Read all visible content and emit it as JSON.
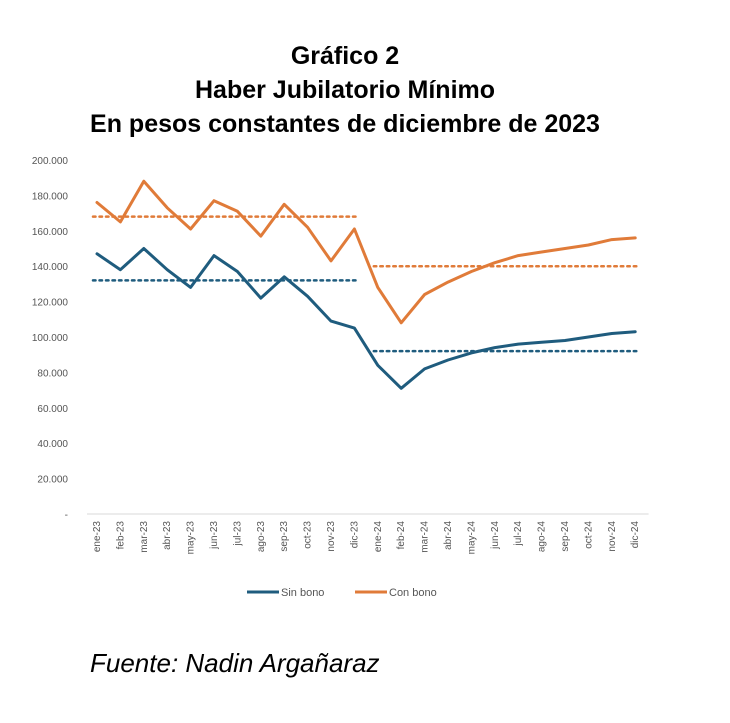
{
  "title": {
    "line1": "Gráfico 2",
    "line2": "Haber Jubilatorio Mínimo",
    "line3": "En pesos constantes de diciembre de 2023"
  },
  "source": "Fuente: Nadin Argañaraz",
  "colors": {
    "sin_bono": "#1F5C7E",
    "con_bono": "#E07B39",
    "axis_text": "#555555"
  },
  "chart_data": {
    "type": "line",
    "categories": [
      "ene-23",
      "feb-23",
      "mar-23",
      "abr-23",
      "may-23",
      "jun-23",
      "jul-23",
      "ago-23",
      "sep-23",
      "oct-23",
      "nov-23",
      "dic-23",
      "ene-24",
      "feb-24",
      "mar-24",
      "abr-24",
      "may-24",
      "jun-24",
      "jul-24",
      "ago-24",
      "sep-24",
      "oct-24",
      "nov-24",
      "dic-24"
    ],
    "series": [
      {
        "name": "Sin bono",
        "values": [
          147000,
          138000,
          150000,
          138000,
          128000,
          146000,
          137000,
          122000,
          134000,
          123000,
          109000,
          105000,
          84000,
          71000,
          82000,
          87000,
          91000,
          94000,
          96000,
          97000,
          98000,
          100000,
          102000,
          103000
        ]
      },
      {
        "name": "Con bono",
        "values": [
          176000,
          165000,
          188000,
          173000,
          161000,
          177000,
          171000,
          157000,
          175000,
          162000,
          143000,
          161000,
          128000,
          108000,
          124000,
          131000,
          137000,
          142000,
          146000,
          148000,
          150000,
          152000,
          155000,
          156000
        ]
      }
    ],
    "reference_lines": [
      {
        "series": "Con bono",
        "value": 168000,
        "from": "ene-23",
        "to": "dic-23"
      },
      {
        "series": "Sin bono",
        "value": 132000,
        "from": "ene-23",
        "to": "dic-23"
      },
      {
        "series": "Con bono",
        "value": 140000,
        "from": "ene-24",
        "to": "dic-24"
      },
      {
        "series": "Sin bono",
        "value": 92000,
        "from": "ene-24",
        "to": "dic-24"
      }
    ],
    "ylim": [
      0,
      200000
    ],
    "y_ticks": [
      0,
      20000,
      40000,
      60000,
      80000,
      100000,
      120000,
      140000,
      160000,
      180000,
      200000
    ],
    "y_tick_labels": [
      "-",
      "20.000",
      "40.000",
      "60.000",
      "80.000",
      "100.000",
      "120.000",
      "140.000",
      "160.000",
      "180.000",
      "200.000"
    ],
    "grid": false,
    "legend_position": "bottom"
  }
}
